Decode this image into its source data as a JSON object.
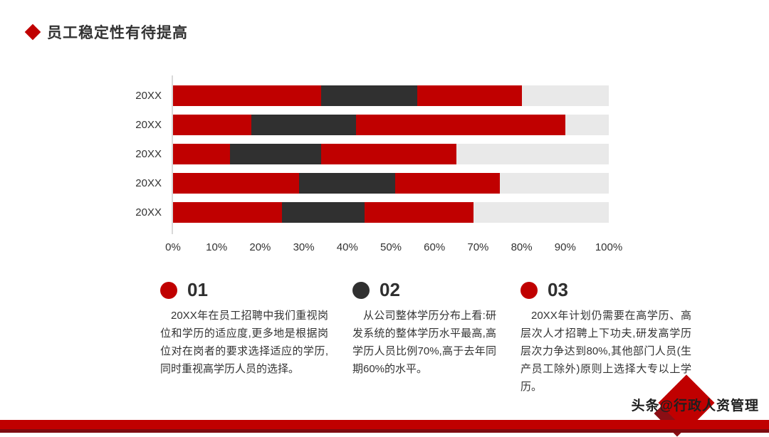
{
  "header": {
    "title": "员工稳定性有待提高"
  },
  "chart_data": {
    "type": "bar",
    "orientation": "horizontal",
    "stacked": true,
    "categories": [
      "20XX",
      "20XX",
      "20XX",
      "20XX",
      "20XX"
    ],
    "series": [
      {
        "name": "red-1",
        "color": "#C00000",
        "values": [
          34,
          18,
          13,
          29,
          25
        ]
      },
      {
        "name": "dark",
        "color": "#303030",
        "values": [
          22,
          24,
          21,
          22,
          19
        ]
      },
      {
        "name": "red-2",
        "color": "#C00000",
        "values": [
          24,
          48,
          31,
          24,
          25
        ]
      }
    ],
    "x_ticks": [
      "0%",
      "10%",
      "20%",
      "30%",
      "40%",
      "50%",
      "60%",
      "70%",
      "80%",
      "90%",
      "100%"
    ],
    "xlim": [
      0,
      100
    ],
    "track_color": "#E9E9E9",
    "grid": false,
    "legend_position": "none"
  },
  "points": [
    {
      "number": "01",
      "color": "#C00000",
      "text": "20XX年在员工招聘中我们重视岗位和学历的适应度,更多地是根据岗位对在岗者的要求选择适应的学历,同时重视高学历人员的选择。"
    },
    {
      "number": "02",
      "color": "#303030",
      "text": "从公司整体学历分布上看:研发系统的整体学历水平最高,高学历人员比例70%,高于去年同期60%的水平。"
    },
    {
      "number": "03",
      "color": "#C00000",
      "text": "20XX年计划仍需要在高学历、高层次人才招聘上下功夫,研发高学历层次力争达到80%,其他部门人员(生产员工除外)原则上选择大专以上学历。"
    }
  ],
  "footer": {
    "watermark": "头条@行政人资管理"
  }
}
